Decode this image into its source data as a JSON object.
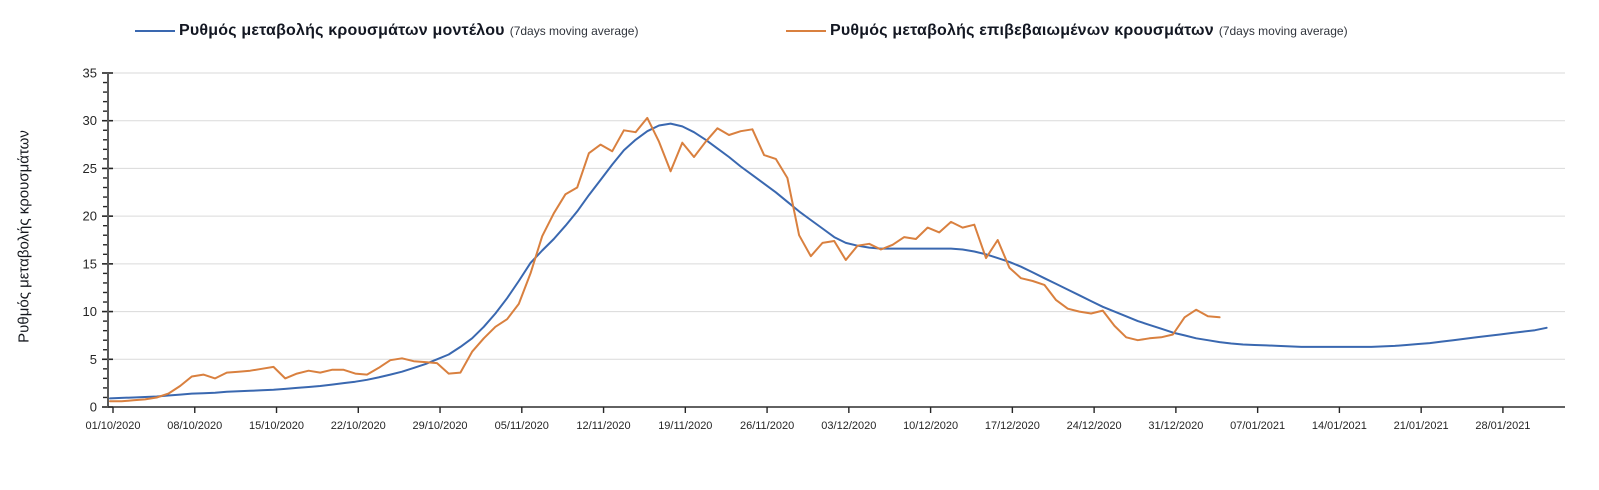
{
  "legend": {
    "items": [
      {
        "label": "Ρυθμός μεταβολής κρουσμάτων μοντέλου",
        "suffix": "(7days moving average)",
        "color": "#3a68b0"
      },
      {
        "label": "Ρυθμός μεταβολής επιβεβαιωμένων κρουσμάτων",
        "suffix": "(7days moving average)",
        "color": "#d9803f"
      }
    ]
  },
  "chart_data": {
    "type": "line",
    "title": "",
    "xlabel": "",
    "ylabel": "Ρυθμός μεταβολής κρουσμάτων",
    "ylim": [
      0,
      35
    ],
    "y_ticks": [
      0,
      5,
      10,
      15,
      20,
      25,
      30,
      35
    ],
    "y_minor_tick_step": 1,
    "grid": "horizontal gridlines at every 5 units",
    "legend_position": "top",
    "x_tick_interval_days": 7,
    "x_tick_labels": [
      "01/10/2020",
      "08/10/2020",
      "15/10/2020",
      "22/10/2020",
      "29/10/2020",
      "05/11/2020",
      "12/11/2020",
      "19/11/2020",
      "26/11/2020",
      "03/12/2020",
      "10/12/2020",
      "17/12/2020",
      "24/12/2020",
      "31/12/2020",
      "07/01/2021",
      "14/01/2021",
      "21/01/2021",
      "28/01/2021"
    ],
    "x_unit": "days since 01/10/2020, daily points",
    "series": [
      {
        "name": "Ρυθμός μεταβολής κρουσμάτων μοντέλου (7days moving average)",
        "color": "#3a68b0",
        "start_day": 0,
        "values": [
          0.9,
          0.95,
          1.0,
          1.05,
          1.1,
          1.2,
          1.3,
          1.4,
          1.45,
          1.5,
          1.6,
          1.65,
          1.7,
          1.75,
          1.8,
          1.9,
          2.0,
          2.1,
          2.2,
          2.35,
          2.5,
          2.65,
          2.85,
          3.1,
          3.4,
          3.7,
          4.1,
          4.5,
          5.0,
          5.5,
          6.3,
          7.2,
          8.4,
          9.8,
          11.4,
          13.2,
          15.1,
          16.4,
          17.6,
          19.0,
          20.5,
          22.2,
          23.8,
          25.4,
          26.9,
          28.0,
          28.9,
          29.5,
          29.7,
          29.4,
          28.8,
          28.0,
          27.1,
          26.2,
          25.2,
          24.3,
          23.4,
          22.5,
          21.5,
          20.5,
          19.6,
          18.7,
          17.8,
          17.2,
          16.9,
          16.7,
          16.6,
          16.6,
          16.6,
          16.6,
          16.6,
          16.6,
          16.6,
          16.5,
          16.3,
          16.0,
          15.6,
          15.2,
          14.7,
          14.1,
          13.5,
          12.9,
          12.3,
          11.7,
          11.1,
          10.5,
          10.0,
          9.5,
          9.0,
          8.6,
          8.2,
          7.8,
          7.5,
          7.2,
          7.0,
          6.8,
          6.65,
          6.55,
          6.5,
          6.45,
          6.4,
          6.35,
          6.3,
          6.3,
          6.3,
          6.3,
          6.3,
          6.3,
          6.3,
          6.35,
          6.4,
          6.5,
          6.6,
          6.7,
          6.85,
          7.0,
          7.15,
          7.3,
          7.45,
          7.6,
          7.75,
          7.9,
          8.05,
          8.3
        ]
      },
      {
        "name": "Ρυθμός μεταβολής επιβεβαιωμένων κρουσμάτων (7days moving average)",
        "color": "#d9803f",
        "start_day": 0,
        "values": [
          0.6,
          0.6,
          0.7,
          0.8,
          1.0,
          1.4,
          2.2,
          3.2,
          3.4,
          3.0,
          3.6,
          3.7,
          3.8,
          4.0,
          4.2,
          3.0,
          3.5,
          3.8,
          3.6,
          3.9,
          3.9,
          3.5,
          3.4,
          4.1,
          4.9,
          5.1,
          4.8,
          4.7,
          4.6,
          3.5,
          3.6,
          5.8,
          7.2,
          8.4,
          9.2,
          10.8,
          14.0,
          17.9,
          20.3,
          22.3,
          23.0,
          26.6,
          27.5,
          26.8,
          29.0,
          28.8,
          30.3,
          27.8,
          24.7,
          27.7,
          26.2,
          27.8,
          29.2,
          28.5,
          28.9,
          29.1,
          26.4,
          26.0,
          24.0,
          18.0,
          15.8,
          17.2,
          17.4,
          15.4,
          16.9,
          17.1,
          16.5,
          17.0,
          17.8,
          17.6,
          18.8,
          18.3,
          19.4,
          18.8,
          19.1,
          15.6,
          17.5,
          14.6,
          13.5,
          13.2,
          12.8,
          11.2,
          10.3,
          10.0,
          9.8,
          10.1,
          8.5,
          7.3,
          7.0,
          7.2,
          7.3,
          7.6,
          9.4,
          10.2,
          9.5,
          9.4
        ]
      }
    ]
  }
}
